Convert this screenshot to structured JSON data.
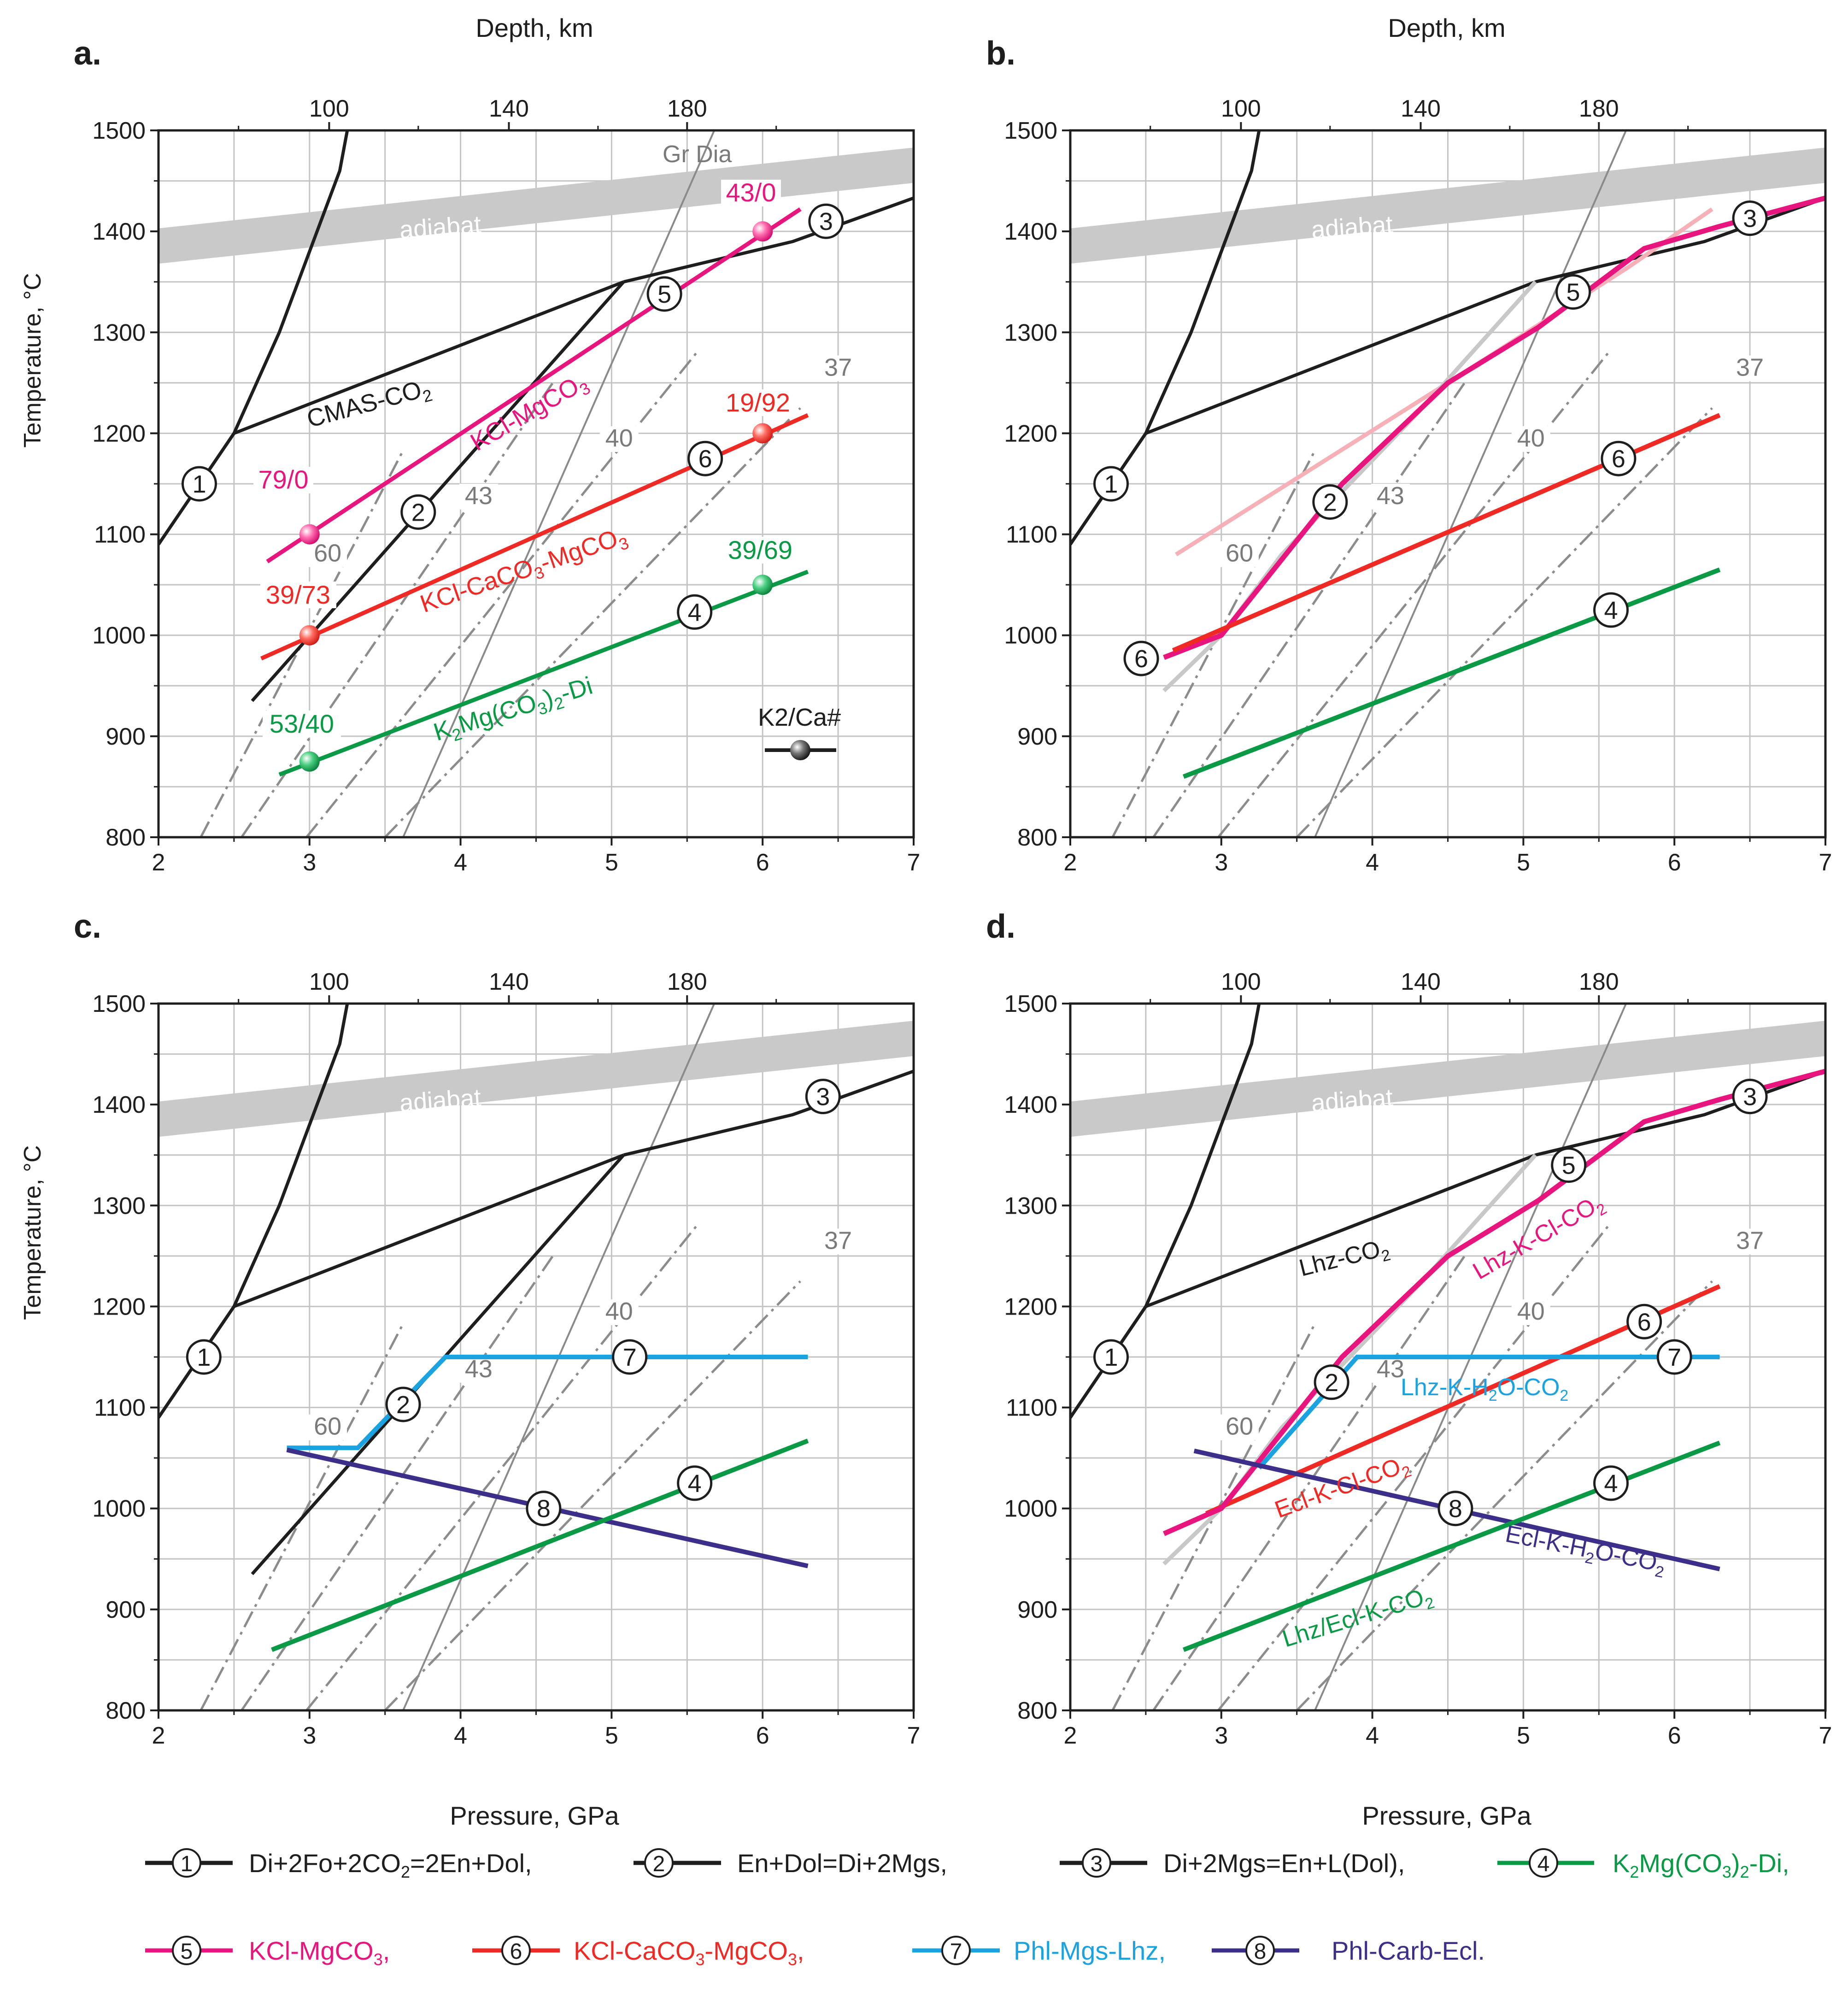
{
  "colors": {
    "black": "#1e1e1e",
    "gray_line": "#8a8a8a",
    "gray_dash": "#8c8c8c",
    "gray_label": "#7a7a7a",
    "adiabat": "#c9c9c9",
    "grid": "#c4c4c4",
    "pink": "#e8157f",
    "pink_light": "#f5b0b8",
    "gray_light": "#c8c8c8",
    "red": "#ef2a24",
    "green": "#0a9a45",
    "blue": "#1aa3e0",
    "navy": "#3b2f8a"
  },
  "labels": {
    "a": "a.",
    "b": "b.",
    "c": "c.",
    "d": "d.",
    "depth": "Depth, km",
    "temperature": "Temperature, °C",
    "pressure": "Pressure, GPa",
    "adiabat": "adiabat",
    "gr_dia": "Gr  Dia",
    "cmas": "CMAS-CO",
    "cmas_sub": "2",
    "kcl_mgco3": "KCl-MgCO",
    "kcl_mgco3_sub": "3",
    "kcl_caco3": "KCl-CaCO",
    "kcl_caco3_sub1": "3",
    "kcl_caco3_mid": "-MgCO",
    "kcl_caco3_sub2": "3",
    "k2mg_a": "K",
    "k2mg_sub1": "2",
    "k2mg_b": "Mg(CO",
    "k2mg_sub2": "3",
    "k2mg_c": ")",
    "k2mg_sub3": "2",
    "k2mg_d": "-Di",
    "legend_key": "K2/Ca#",
    "lhz_co2": "Lhz-CO",
    "lhz_co2_sub": "2",
    "lhz_k_cl": "Lhz-K-Cl-CO",
    "lhz_k_cl_sub": "2",
    "lhz_k_h2o_a": "Lhz-K-H",
    "lhz_k_h2o_sub1": "2",
    "lhz_k_h2o_b": "O-CO",
    "lhz_k_h2o_sub2": "2",
    "ecl_k_cl": "Ecl-K-Cl-CO",
    "ecl_k_cl_sub": "2",
    "ecl_k_h2o_a": "Ecl-K-H",
    "ecl_k_h2o_sub1": "2",
    "ecl_k_h2o_b": "O-CO",
    "ecl_k_h2o_sub2": "2",
    "lhz_ecl_k": "Lhz/Ecl-K-CO",
    "lhz_ecl_k_sub": "2"
  },
  "points_a": {
    "p1": "79/0",
    "p2": "43/0",
    "p3": "39/73",
    "p4": "19/92",
    "p5": "53/40",
    "p6": "39/69"
  },
  "legend": {
    "l1": "Di+2Fo+2CO",
    "l1_sub": "2",
    "l1_end": "=2En+Dol,",
    "l2": "En+Dol=Di+2Mgs,",
    "l3": "Di+2Mgs=En+L(Dol),",
    "l4_a": "K",
    "l4_sub1": "2",
    "l4_b": "Mg(CO",
    "l4_sub2": "3",
    "l4_c": ")",
    "l4_sub3": "2",
    "l4_d": "-Di,",
    "l5": "KCl-MgCO",
    "l5_sub": "3",
    "l5_end": ",",
    "l6_a": "KCl-CaCO",
    "l6_sub1": "3",
    "l6_b": "-MgCO",
    "l6_sub2": "3",
    "l6_end": ",",
    "l7": "Phl-Mgs-Lhz,",
    "l8": "Phl-Carb-Ecl."
  },
  "chart_data": {
    "type": "line",
    "xlabel": "Pressure, GPa",
    "ylabel": "Temperature, °C",
    "x2label": "Depth, km",
    "xlim": [
      2,
      7
    ],
    "ylim": [
      800,
      1500
    ],
    "xticks": [
      "2",
      "3",
      "4",
      "5",
      "6",
      "7"
    ],
    "yticks": [
      "800",
      "900",
      "1000",
      "1100",
      "1200",
      "1300",
      "1400",
      "1500"
    ],
    "depth_ticks": [
      {
        "label": "100",
        "p": 3.13
      },
      {
        "label": "140",
        "p": 4.32
      },
      {
        "label": "180",
        "p": 5.5
      }
    ],
    "geotherms": [
      {
        "label": "60",
        "points": [
          [
            2.28,
            800
          ],
          [
            3.62,
            1183
          ]
        ],
        "label_at": [
          3.12,
          1073
        ]
      },
      {
        "label": "43",
        "points": [
          [
            2.55,
            800
          ],
          [
            4.62,
            1252
          ]
        ],
        "label_at": [
          4.12,
          1130
        ]
      },
      {
        "label": "40",
        "points": [
          [
            2.98,
            800
          ],
          [
            5.58,
            1283
          ]
        ],
        "label_at": [
          5.05,
          1187
        ]
      },
      {
        "label": "37",
        "points": [
          [
            3.5,
            800
          ],
          [
            6.25,
            1225
          ]
        ],
        "label_at": [
          6.5,
          1257
        ]
      }
    ],
    "graphite_diamond": {
      "points": [
        [
          3.62,
          800
        ],
        [
          5.68,
          1500
        ]
      ]
    },
    "adiabat": {
      "points": [
        [
          2,
          1368
        ],
        [
          7,
          1448
        ]
      ],
      "thickness": 35
    },
    "reactions": {
      "1": {
        "points": [
          [
            2,
            1090
          ],
          [
            2.5,
            1200
          ],
          [
            2.8,
            1300
          ],
          [
            3.05,
            1400
          ],
          [
            3.2,
            1460
          ],
          [
            3.25,
            1500
          ]
        ]
      },
      "2": {
        "points": [
          [
            2.62,
            935
          ],
          [
            5.08,
            1350
          ]
        ]
      },
      "3": {
        "points": [
          [
            5.08,
            1350
          ],
          [
            6.2,
            1390
          ],
          [
            7,
            1433
          ]
        ]
      },
      "cmas": {
        "points": [
          [
            2.5,
            1200
          ],
          [
            5.08,
            1350
          ]
        ]
      }
    },
    "panels": [
      {
        "panel": "a",
        "series": [
          {
            "name": "KCl-MgCO3",
            "points": [
              [
                2.72,
                1073
              ],
              [
                6.25,
                1422
              ]
            ]
          },
          {
            "name": "KCl-CaCO3-MgCO3",
            "points": [
              [
                2.68,
                977
              ],
              [
                6.3,
                1218
              ]
            ]
          },
          {
            "name": "K2Mg(CO3)2-Di",
            "points": [
              [
                2.8,
                862
              ],
              [
                6.3,
                1063
              ]
            ]
          }
        ],
        "data_points": [
          {
            "label": "79/0",
            "p": 3,
            "t": 1100
          },
          {
            "label": "43/0",
            "p": 6,
            "t": 1400
          },
          {
            "label": "39/73",
            "p": 3,
            "t": 1000
          },
          {
            "label": "19/92",
            "p": 6,
            "t": 1200
          },
          {
            "label": "53/40",
            "p": 3,
            "t": 875
          },
          {
            "label": "39/69",
            "p": 6,
            "t": 1050
          }
        ]
      },
      {
        "panel": "b",
        "series": [
          {
            "name": "KCl-MgCO3",
            "points": [
              [
                2.62,
                978
              ],
              [
                3,
                1000
              ],
              [
                3.8,
                1150
              ],
              [
                4.5,
                1250
              ],
              [
                5.1,
                1305
              ],
              [
                5.8,
                1383
              ],
              [
                6.3,
                1405
              ],
              [
                7,
                1433
              ]
            ]
          },
          {
            "name": "KCl-CaCO3-MgCO3",
            "points": [
              [
                2.68,
                985
              ],
              [
                6.3,
                1218
              ]
            ]
          },
          {
            "name": "K2Mg(CO3)2-Di",
            "points": [
              [
                2.75,
                860
              ],
              [
                6.3,
                1065
              ]
            ]
          }
        ]
      },
      {
        "panel": "c",
        "series": [
          {
            "name": "Phl-Mgs-Lhz",
            "points": [
              [
                2.85,
                1060
              ],
              [
                3.32,
                1060
              ],
              [
                3.9,
                1150
              ],
              [
                6.3,
                1150
              ]
            ]
          },
          {
            "name": "Phl-Carb-Ecl",
            "points": [
              [
                2.85,
                1058
              ],
              [
                6.3,
                943
              ]
            ]
          },
          {
            "name": "K2Mg(CO3)2-Di",
            "points": [
              [
                2.75,
                860
              ],
              [
                6.3,
                1067
              ]
            ]
          }
        ]
      },
      {
        "panel": "d",
        "series": [
          {
            "name": "Lhz-K-Cl-CO2",
            "points": [
              [
                2.62,
                975
              ],
              [
                3,
                1000
              ],
              [
                3.8,
                1150
              ],
              [
                4.5,
                1250
              ],
              [
                5.1,
                1305
              ],
              [
                5.8,
                1383
              ],
              [
                6.3,
                1405
              ],
              [
                7,
                1433
              ]
            ]
          },
          {
            "name": "Lhz-K-H2O-CO2",
            "points": [
              [
                3.25,
                1040
              ],
              [
                3.9,
                1150
              ],
              [
                6.3,
                1150
              ]
            ]
          },
          {
            "name": "Ecl-K-Cl-CO2",
            "points": [
              [
                2.9,
                995
              ],
              [
                6.3,
                1220
              ]
            ]
          },
          {
            "name": "Ecl-K-H2O-CO2",
            "points": [
              [
                2.82,
                1057
              ],
              [
                6.3,
                940
              ]
            ]
          },
          {
            "name": "Lhz/Ecl-K-CO2",
            "points": [
              [
                2.75,
                860
              ],
              [
                6.3,
                1065
              ]
            ]
          }
        ]
      }
    ]
  }
}
